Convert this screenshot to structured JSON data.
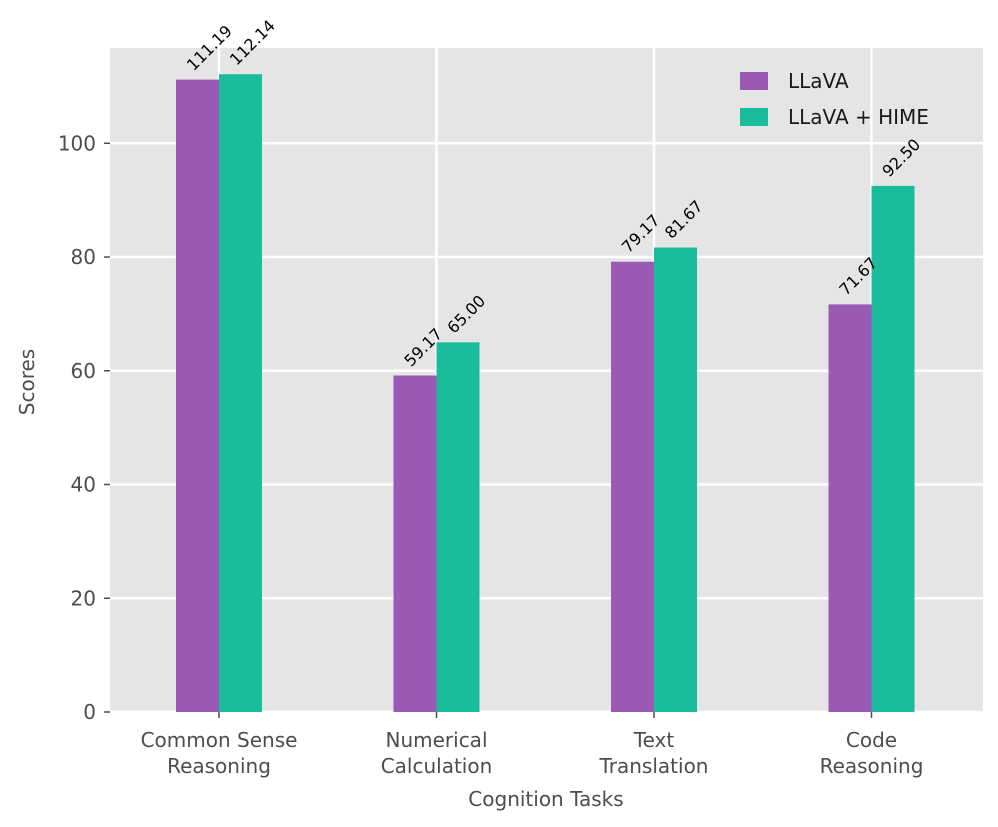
{
  "chart_data": {
    "type": "bar",
    "title": "",
    "xlabel": "Cognition Tasks",
    "ylabel": "Scores",
    "categories": [
      [
        "Common Sense",
        "Reasoning"
      ],
      [
        "Numerical",
        "Calculation"
      ],
      [
        "Text",
        "Translation"
      ],
      [
        "Code",
        "Reasoning"
      ]
    ],
    "series": [
      {
        "name": "LLaVA",
        "color": "#9b59b6",
        "values": [
          111.19,
          59.17,
          79.17,
          71.67
        ],
        "labels": [
          "111.19",
          "59.17",
          "79.17",
          "71.67"
        ]
      },
      {
        "name": "LLaVA + HIME",
        "color": "#1abc9c",
        "values": [
          112.14,
          65.0,
          81.67,
          92.5
        ],
        "labels": [
          "112.14",
          "65.00",
          "81.67",
          "92.50"
        ]
      }
    ],
    "ylim": [
      0,
      116.75
    ],
    "yticks": [
      0,
      20,
      40,
      60,
      80,
      100
    ],
    "grid": true,
    "legend_position": "top-right",
    "background_color": "#e5e5e5"
  }
}
